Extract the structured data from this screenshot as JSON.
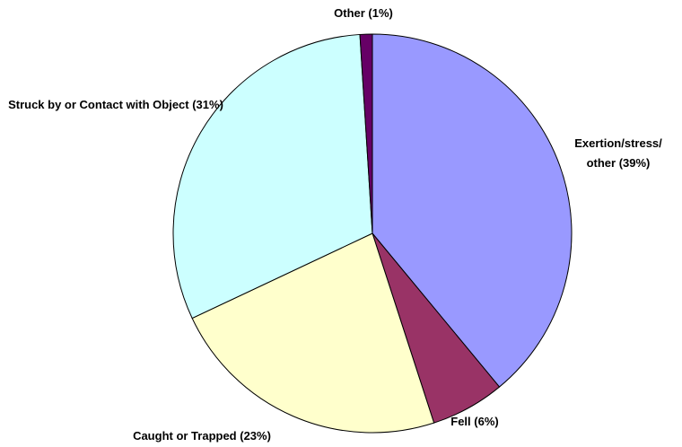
{
  "chart_data": {
    "type": "pie",
    "categories": [
      "Exertion/stress/ other (39%)",
      "Fell (6%)",
      "Caught or Trapped (23%)",
      "Struck by or Contact with Object (31%)",
      "Other (1%)"
    ],
    "values": [
      39,
      6,
      23,
      31,
      1
    ],
    "colors": [
      "#9999ff",
      "#993366",
      "#ffffcc",
      "#ccffff",
      "#660066"
    ]
  }
}
